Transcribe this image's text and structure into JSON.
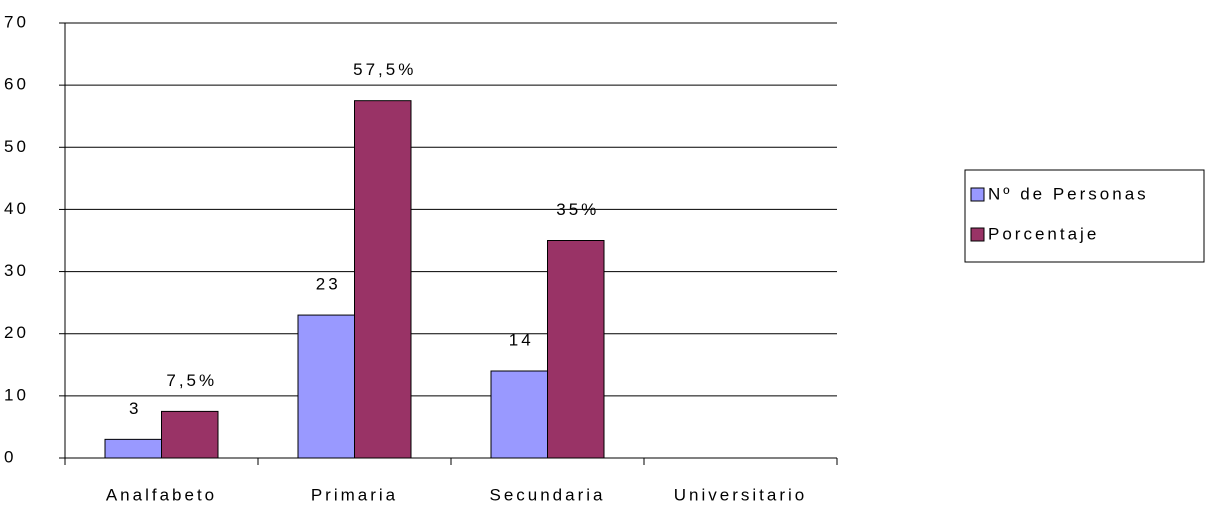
{
  "chart_data": {
    "type": "bar",
    "categories": [
      "Analfabeto",
      "Primaria",
      "Secundaria",
      "Universitario"
    ],
    "series": [
      {
        "name": "Nº de Personas",
        "color": "#9999ff",
        "values": [
          3,
          23,
          14,
          null
        ]
      },
      {
        "name": "Porcentaje",
        "color": "#993366",
        "values": [
          7.5,
          57.5,
          35,
          null
        ],
        "value_labels": [
          "7,5%",
          "57,5%",
          "35%",
          null
        ]
      }
    ],
    "ylim": [
      0,
      70
    ],
    "yticks": [
      0,
      10,
      20,
      30,
      40,
      50,
      60,
      70
    ],
    "grid": true,
    "legend": "right"
  }
}
